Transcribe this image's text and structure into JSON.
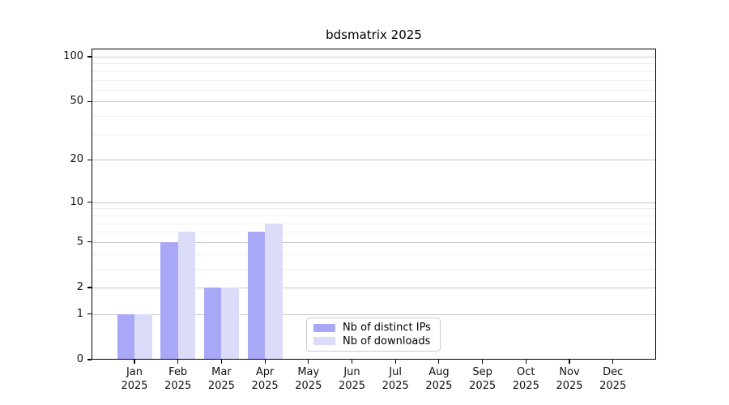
{
  "chart_data": {
    "type": "bar",
    "title": "bdsmatrix 2025",
    "categories": [
      "Jan 2025",
      "Feb 2025",
      "Mar 2025",
      "Apr 2025",
      "May 2025",
      "Jun 2025",
      "Jul 2025",
      "Aug 2025",
      "Sep 2025",
      "Oct 2025",
      "Nov 2025",
      "Dec 2025"
    ],
    "series": [
      {
        "name": "Nb of distinct IPs",
        "color": "#a8a8f7",
        "values": [
          1,
          5,
          2,
          6,
          0,
          0,
          0,
          0,
          0,
          0,
          0,
          0
        ]
      },
      {
        "name": "Nb of downloads",
        "color": "#dbdbfa",
        "values": [
          1,
          6,
          2,
          7,
          0,
          0,
          0,
          0,
          0,
          0,
          0,
          0
        ]
      }
    ],
    "yaxis": {
      "scale": "log1p",
      "ticks": [
        0,
        1,
        2,
        5,
        10,
        20,
        50,
        100
      ],
      "minor_gridlines": [
        3,
        4,
        6,
        7,
        8,
        9,
        30,
        40,
        60,
        70,
        80,
        90
      ],
      "range": [
        0,
        113
      ]
    },
    "grid": true,
    "legend_position": "lower-center",
    "colors": {
      "major_grid": "#c8c8c8",
      "minor_grid": "#efefef",
      "spine": "#000000",
      "text": "#111111",
      "legend_border": "#cccccc"
    }
  }
}
